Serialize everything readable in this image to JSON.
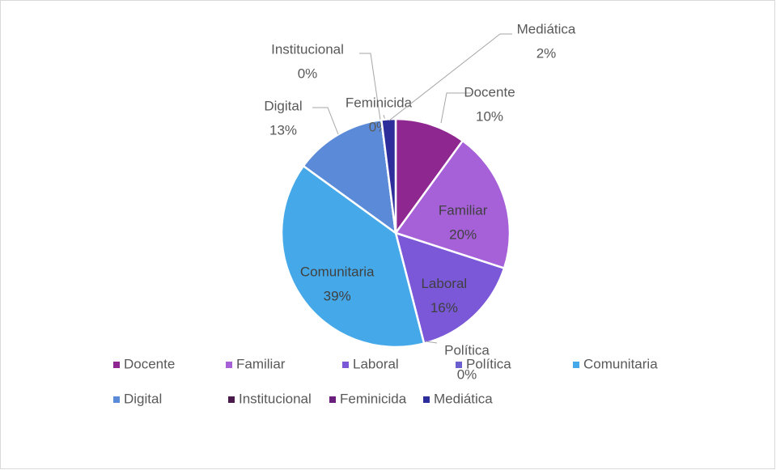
{
  "chart_data": {
    "type": "pie",
    "categories": [
      "Docente",
      "Familiar",
      "Laboral",
      "Política",
      "Comunitaria",
      "Digital",
      "Institucional",
      "Feminicida",
      "Mediática"
    ],
    "values": [
      10,
      20,
      16,
      0,
      39,
      13,
      0,
      0,
      2
    ],
    "value_labels": [
      "10%",
      "20%",
      "16%",
      "0%",
      "39%",
      "13%",
      "0%",
      "0%",
      "2%"
    ],
    "colors": [
      "#8e2790",
      "#a660d8",
      "#7a58d8",
      "#6b5fcf",
      "#45a9e9",
      "#5b8bd8",
      "#4a1a4d",
      "#6b1f7d",
      "#2d2e9b"
    ],
    "legend": "bottom"
  }
}
